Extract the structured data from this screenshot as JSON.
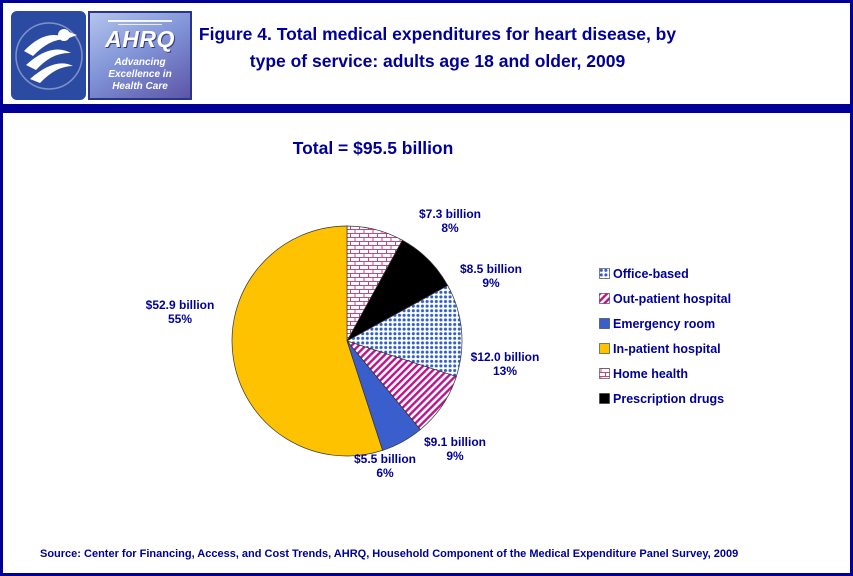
{
  "colors": {
    "navy": "#000099",
    "slice_office_based_dots": "#2E5EC8",
    "slice_outpatient_stripes": "#BE1190",
    "slice_emergency": "#3A5FCD",
    "slice_inpatient": "#FFC200",
    "slice_home_health_bricks": "#C2487E",
    "slice_prescription": "#000000"
  },
  "header": {
    "title_line1": "Figure 4. Total medical expenditures for heart disease, by",
    "title_line2": "type of service: adults age 18 and older, 2009",
    "logo": {
      "acronym": "AHRQ",
      "tagline": "Advancing\nExcellence in\nHealth Care"
    }
  },
  "source": "Source: Center for Financing, Access, and Cost Trends, AHRQ, Household Component of the Medical Expenditure Panel Survey, 2009",
  "chart_data": {
    "type": "pie",
    "title": "Figure 4. Total medical expenditures for heart disease, by type of service: adults age 18 and older, 2009",
    "total_label": "Total = $95.5 billion",
    "total_billion": 95.5,
    "units": "billions of dollars",
    "legend_position": "right",
    "start_angle_deg": 0,
    "draw_order": [
      4,
      5,
      0,
      1,
      2,
      3
    ],
    "slices": [
      {
        "id": "office-based",
        "label": "Office-based",
        "value_billion": 12.0,
        "percent": 13,
        "value_label": "$12.0 billion",
        "percent_label": "13%",
        "fill": "pat-dots-blue"
      },
      {
        "id": "out-patient-hospital",
        "label": "Out-patient hospital",
        "value_billion": 9.1,
        "percent": 9,
        "value_label": "$9.1 billion",
        "percent_label": "9%",
        "fill": "pat-stripes-magenta"
      },
      {
        "id": "emergency-room",
        "label": "Emergency room",
        "value_billion": 5.5,
        "percent": 6,
        "value_label": "$5.5 billion",
        "percent_label": "6%",
        "fill": "#3A5FCD"
      },
      {
        "id": "in-patient-hospital",
        "label": "In-patient hospital",
        "value_billion": 52.9,
        "percent": 55,
        "value_label": "$52.9 billion",
        "percent_label": "55%",
        "fill": "#FFC200"
      },
      {
        "id": "home-health",
        "label": "Home health",
        "value_billion": 7.3,
        "percent": 8,
        "value_label": "$7.3 billion",
        "percent_label": "8%",
        "fill": "pat-bricks-pink"
      },
      {
        "id": "prescription-drugs",
        "label": "Prescription drugs",
        "value_billion": 8.5,
        "percent": 9,
        "value_label": "$8.5 billion",
        "percent_label": "9%",
        "fill": "#000000"
      }
    ]
  }
}
